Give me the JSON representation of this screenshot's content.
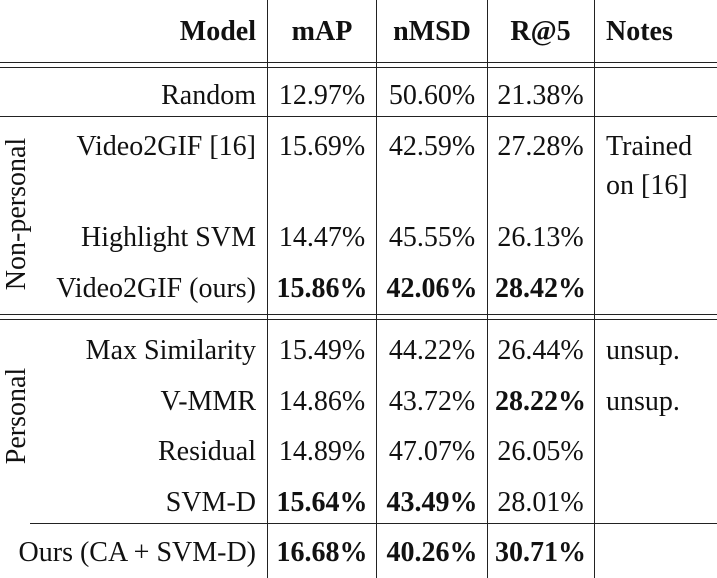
{
  "table": {
    "headers": {
      "model": "Model",
      "map": "mAP",
      "nmsd": "nMSD",
      "r5": "R@5",
      "notes": "Notes"
    },
    "groups": {
      "nonpersonal": "Non-personal",
      "personal": "Personal"
    },
    "rows": [
      {
        "model": "Random",
        "map": "12.97%",
        "nmsd": "50.60%",
        "r5": "21.38%",
        "notes": ""
      },
      {
        "model": "Video2GIF [16]",
        "map": "15.69%",
        "nmsd": "42.59%",
        "r5": "27.28%",
        "notes": "Trained",
        "notes2": "on [16]"
      },
      {
        "model": "Highlight SVM",
        "map": "14.47%",
        "nmsd": "45.55%",
        "r5": "26.13%",
        "notes": ""
      },
      {
        "model": "Video2GIF (ours)",
        "map": "15.86%",
        "nmsd": "42.06%",
        "r5": "28.42%",
        "notes": ""
      },
      {
        "model": "Max Similarity",
        "map": "15.49%",
        "nmsd": "44.22%",
        "r5": "26.44%",
        "notes": "unsup."
      },
      {
        "model": "V-MMR",
        "map": "14.86%",
        "nmsd": "43.72%",
        "r5": "28.22%",
        "notes": "unsup."
      },
      {
        "model": "Residual",
        "map": "14.89%",
        "nmsd": "47.07%",
        "r5": "26.05%",
        "notes": ""
      },
      {
        "model": "SVM-D",
        "map": "15.64%",
        "nmsd": "43.49%",
        "r5": "28.01%",
        "notes": ""
      },
      {
        "model": "Ours (CA + SVM-D)",
        "map": "16.68%",
        "nmsd": "40.26%",
        "r5": "30.71%",
        "notes": ""
      }
    ]
  }
}
